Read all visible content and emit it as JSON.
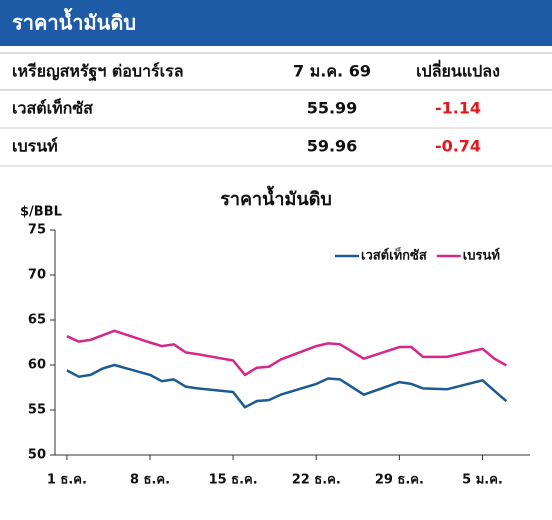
{
  "header": {
    "title": "ราคาน้ำมันดิบ"
  },
  "table": {
    "columns": [
      "เหรียญสหรัฐฯ ต่อบาร์เรล",
      "7 ม.ค. 69",
      "เปลี่ยนแปลง"
    ],
    "rows": [
      [
        "เวสต์เท็กซัส",
        55.99,
        -1.14
      ],
      [
        "เบรนท์",
        59.96,
        -0.74
      ]
    ],
    "change_color": "#e8161b"
  },
  "chart_data": {
    "type": "line",
    "title": "ราคาน้ำมันดิบ",
    "y_label": "$/BBL",
    "x": [
      0,
      1,
      2,
      3,
      4,
      7,
      8,
      9,
      10,
      11,
      14,
      15,
      16,
      17,
      18,
      21,
      22,
      23,
      25,
      28,
      29,
      30,
      32,
      35,
      36,
      37
    ],
    "xlim": [
      -1,
      39
    ],
    "xticks": [
      {
        "value": 0,
        "label": "1 ธ.ค."
      },
      {
        "value": 7,
        "label": "8 ธ.ค."
      },
      {
        "value": 14,
        "label": "15 ธ.ค."
      },
      {
        "value": 21,
        "label": "22 ธ.ค."
      },
      {
        "value": 28,
        "label": "29 ธ.ค."
      },
      {
        "value": 35,
        "label": "5 ม.ค."
      }
    ],
    "ylim": [
      50,
      75
    ],
    "yticks": [
      50,
      55,
      60,
      65,
      70,
      75
    ],
    "legend": "top-right",
    "series": [
      {
        "name": "เวสต์เท็กซัส",
        "color": "#1b5a93",
        "values": [
          59.4,
          58.7,
          58.9,
          59.6,
          60.0,
          58.9,
          58.2,
          58.4,
          57.6,
          57.4,
          57.0,
          55.3,
          56.0,
          56.1,
          56.7,
          57.9,
          58.5,
          58.4,
          56.7,
          58.1,
          57.9,
          57.4,
          57.3,
          58.3,
          57.13,
          55.99
        ]
      },
      {
        "name": "เบรนท์",
        "color": "#d6268a",
        "values": [
          63.2,
          62.6,
          62.8,
          63.3,
          63.8,
          62.5,
          62.1,
          62.3,
          61.4,
          61.2,
          60.5,
          58.9,
          59.7,
          59.8,
          60.6,
          62.1,
          62.4,
          62.3,
          60.7,
          62.0,
          62.0,
          60.9,
          60.9,
          61.8,
          60.7,
          59.96
        ]
      }
    ]
  }
}
